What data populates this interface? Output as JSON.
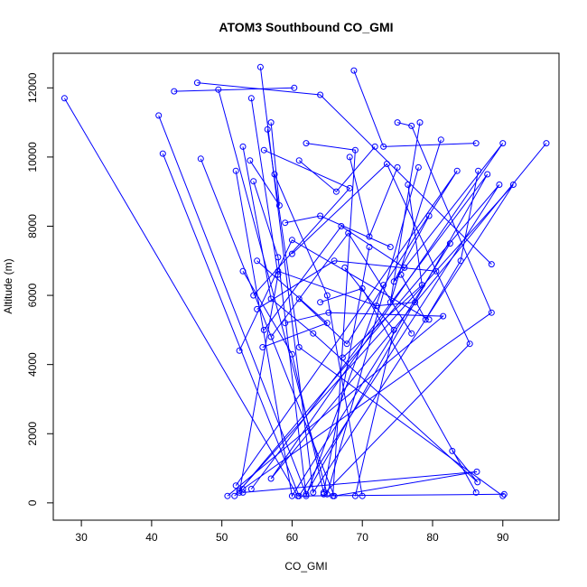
{
  "chart_data": {
    "type": "line",
    "title": "ATOM3 Southbound CO_GMI",
    "xlabel": "CO_GMI",
    "ylabel": "Altitude (m)",
    "xlim": [
      26,
      98
    ],
    "ylim": [
      -500,
      13000
    ],
    "xticks": [
      30,
      40,
      50,
      60,
      70,
      80,
      90
    ],
    "yticks": [
      0,
      2000,
      4000,
      6000,
      8000,
      10000,
      12000
    ],
    "grid": false,
    "legend": "none",
    "color": "#0000ff",
    "series": [
      {
        "x": [
          27.6,
          60.8,
          90.2
        ],
        "y": [
          11700,
          200,
          250
        ]
      },
      {
        "x": [
          41.0,
          62.0,
          87.8,
          54.2
        ],
        "y": [
          11200,
          250,
          9500,
          400
        ]
      },
      {
        "x": [
          41.6,
          61.0,
          89.5,
          52.5
        ],
        "y": [
          10100,
          200,
          9200,
          350
        ]
      },
      {
        "x": [
          43.2,
          60.3
        ],
        "y": [
          11900,
          12000
        ]
      },
      {
        "x": [
          46.5,
          64.0,
          88.4
        ],
        "y": [
          12150,
          11800,
          6900
        ]
      },
      {
        "x": [
          49.5,
          65.0,
          78.0
        ],
        "y": [
          11950,
          250,
          9700
        ]
      },
      {
        "x": [
          55.5,
          63.0,
          91.5,
          51.8
        ],
        "y": [
          12600,
          300,
          9200,
          200
        ]
      },
      {
        "x": [
          68.8,
          73.0,
          86.2
        ],
        "y": [
          12500,
          10300,
          10400
        ]
      },
      {
        "x": [
          47.0,
          66.0,
          86.3,
          53.0
        ],
        "y": [
          9950,
          200,
          900,
          300
        ]
      },
      {
        "x": [
          52.0,
          60.0,
          82.5
        ],
        "y": [
          9600,
          200,
          7500
        ]
      },
      {
        "x": [
          54.2,
          58.0,
          52.5
        ],
        "y": [
          11700,
          6600,
          300
        ]
      },
      {
        "x": [
          57.0,
          58.2,
          54.0
        ],
        "y": [
          11000,
          8600,
          9900
        ]
      },
      {
        "x": [
          75.0,
          77.0,
          88.4,
          53.0
        ],
        "y": [
          11000,
          10900,
          5500,
          400
        ]
      },
      {
        "x": [
          78.2,
          74.0,
          81.2
        ],
        "y": [
          11000,
          5800,
          10500
        ]
      },
      {
        "x": [
          79.5,
          74.5,
          90.0,
          57.0,
          96.2
        ],
        "y": [
          8300,
          6400,
          10400,
          700,
          10400
        ]
      },
      {
        "x": [
          53.0,
          57.0,
          63.0,
          86.4,
          82.8
        ],
        "y": [
          10300,
          5900,
          4900,
          600,
          1500
        ]
      },
      {
        "x": [
          60.0,
          73.5,
          85.3,
          64.5
        ],
        "y": [
          7200,
          9800,
          4600,
          250
        ]
      },
      {
        "x": [
          56.0,
          68.2,
          54.5
        ],
        "y": [
          10200,
          9100,
          6000
        ]
      },
      {
        "x": [
          62.0,
          69.0,
          65.8
        ],
        "y": [
          10400,
          10200,
          200
        ]
      },
      {
        "x": [
          61.0,
          66.3,
          71.8
        ],
        "y": [
          9900,
          9000,
          10300
        ]
      },
      {
        "x": [
          68.2,
          71.0,
          75.0
        ],
        "y": [
          10000,
          7700,
          9700
        ]
      },
      {
        "x": [
          64.0,
          70.0,
          86.2
        ],
        "y": [
          5800,
          6200,
          300
        ]
      },
      {
        "x": [
          58.0,
          72.0,
          77.5
        ],
        "y": [
          6700,
          5700,
          5800
        ]
      },
      {
        "x": [
          67.5,
          74.5,
          69.0
        ],
        "y": [
          6800,
          5000,
          200
        ]
      },
      {
        "x": [
          61.0,
          67.8,
          83.5,
          52.0
        ],
        "y": [
          5900,
          4600,
          9600,
          500
        ]
      },
      {
        "x": [
          59.0,
          65.2,
          81.5,
          50.8
        ],
        "y": [
          5200,
          5500,
          5400,
          200
        ]
      },
      {
        "x": [
          55.0,
          66.0,
          80.5
        ],
        "y": [
          5600,
          7000,
          6700
        ]
      },
      {
        "x": [
          56.0,
          67.0,
          76.0
        ],
        "y": [
          5000,
          8000,
          6800
        ]
      },
      {
        "x": [
          57.0,
          68.0,
          77.0
        ],
        "y": [
          4800,
          7800,
          4900
        ]
      },
      {
        "x": [
          53.0,
          60.0,
          64.5,
          71.0
        ],
        "y": [
          6700,
          4300,
          300,
          7400
        ]
      },
      {
        "x": [
          55.0,
          65.0,
          55.8
        ],
        "y": [
          7000,
          5200,
          4500
        ]
      },
      {
        "x": [
          52.5,
          60.0,
          79.5
        ],
        "y": [
          4400,
          7600,
          5300
        ]
      },
      {
        "x": [
          54.5,
          58.0,
          62.0,
          73.0
        ],
        "y": [
          9300,
          7100,
          200,
          6300
        ]
      },
      {
        "x": [
          57.5,
          65.0,
          70.0
        ],
        "y": [
          9500,
          6000,
          200
        ]
      },
      {
        "x": [
          59.0,
          64.0,
          74.0
        ],
        "y": [
          8100,
          8300,
          7400
        ]
      },
      {
        "x": [
          56.5,
          61.0,
          90.0
        ],
        "y": [
          10800,
          4500,
          200
        ]
      },
      {
        "x": [
          76.5,
          78.5,
          67.2
        ],
        "y": [
          9200,
          6300,
          4200
        ]
      },
      {
        "x": [
          75.5,
          79.0,
          84.0,
          86.5
        ],
        "y": [
          6600,
          5300,
          7000,
          9600
        ]
      }
    ]
  }
}
